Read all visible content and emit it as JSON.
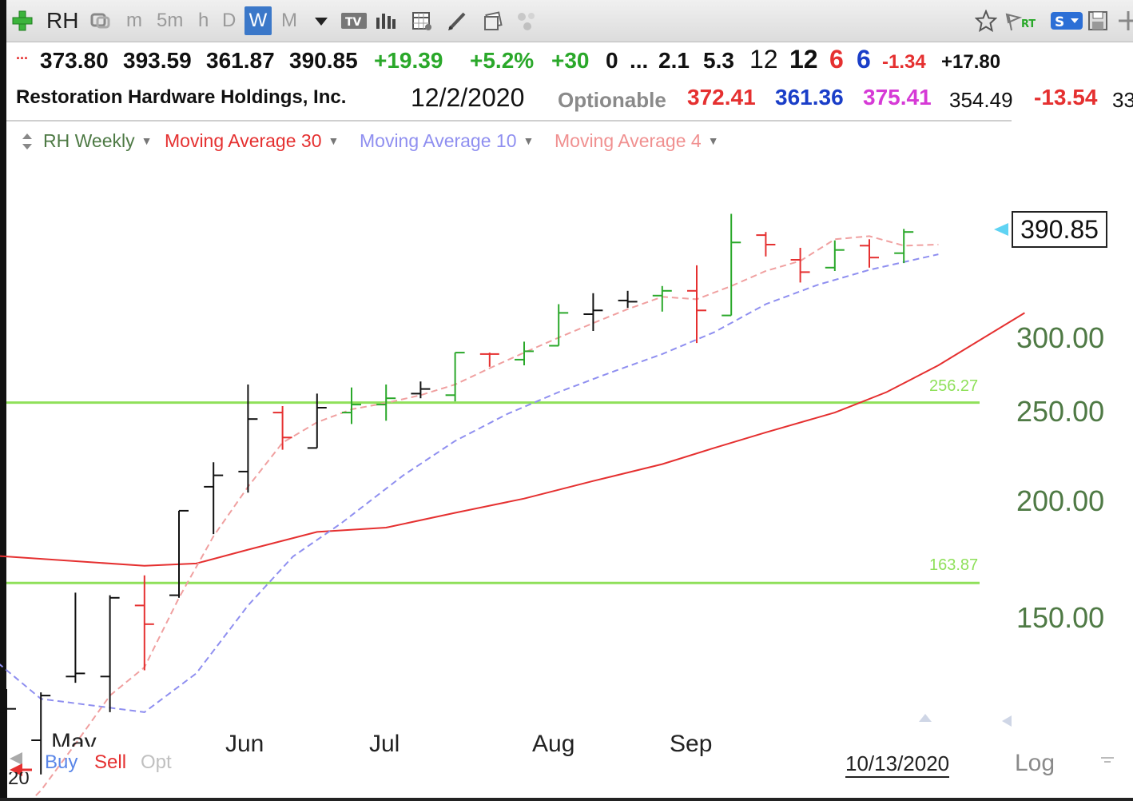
{
  "toolbar": {
    "symbol": "RH",
    "intervals": [
      "m",
      "5m",
      "h",
      "D",
      "W",
      "M"
    ],
    "active_interval": "W"
  },
  "quote": {
    "prefix": "...",
    "open": "373.80",
    "high": "393.59",
    "low": "361.87",
    "close": "390.85",
    "change": "+19.39",
    "change_pct": "+5.2%",
    "v1": "+30",
    "v2": "0",
    "ellipsis": "...",
    "v3": "2.1",
    "v4": "5.3",
    "v5": "12",
    "v6": "12",
    "v7": "6",
    "v8": "6",
    "v9": "-1.34",
    "v10": "+17.80"
  },
  "info": {
    "company": "Restoration Hardware Holdings, Inc.",
    "date": "12/2/2020",
    "optionable": "Optionable",
    "p1": "372.41",
    "p2": "361.36",
    "p3": "375.41",
    "p4": "354.49",
    "p5": "-13.54",
    "p6": "33"
  },
  "legend": {
    "series": "RH Weekly",
    "ma30": "Moving Average 30",
    "ma10": "Moving Average 10",
    "ma4": "Moving Average 4"
  },
  "bottom": {
    "buy": "Buy",
    "sell": "Sell",
    "opt": "Opt",
    "year_fragment": "20",
    "cursor_date": "10/13/2020",
    "scale": "Log"
  },
  "colors": {
    "up": "#2aa82a",
    "down": "#e53030",
    "neutral": "#111111",
    "ma30": "#e53030",
    "ma10": "#8f8ff0",
    "ma4": "#f0a0a0",
    "hline": "#8fe05a",
    "ytick": "#4f7a45"
  },
  "chart_data": {
    "type": "ohlc",
    "scale": "log",
    "last_price": "390.85",
    "y_ticks": [
      "150.00",
      "200.00",
      "250.00",
      "300.00"
    ],
    "x_ticks": [
      "May",
      "Jun",
      "Jul",
      "Aug",
      "Sep"
    ],
    "horizontal_lines": [
      {
        "value": 256.27,
        "label": "256.27"
      },
      {
        "value": 163.87,
        "label": "163.87"
      }
    ],
    "bars": [
      {
        "o": 119,
        "h": 126,
        "l": 93,
        "c": 120,
        "dir": "neutral"
      },
      {
        "o": 111,
        "h": 125,
        "l": 102,
        "c": 124,
        "dir": "neutral"
      },
      {
        "o": 130,
        "h": 160,
        "l": 128,
        "c": 131,
        "dir": "neutral"
      },
      {
        "o": 130,
        "h": 159,
        "l": 119,
        "c": 158,
        "dir": "neutral"
      },
      {
        "o": 155,
        "h": 167,
        "l": 132,
        "c": 148,
        "dir": "down"
      },
      {
        "o": 159,
        "h": 196,
        "l": 158,
        "c": 196,
        "dir": "neutral"
      },
      {
        "o": 208,
        "h": 221,
        "l": 185,
        "c": 214,
        "dir": "neutral"
      },
      {
        "o": 216,
        "h": 268,
        "l": 205,
        "c": 246,
        "dir": "neutral"
      },
      {
        "o": 250,
        "h": 254,
        "l": 228,
        "c": 235,
        "dir": "down"
      },
      {
        "o": 229,
        "h": 262,
        "l": 229,
        "c": 253,
        "dir": "neutral"
      },
      {
        "o": 250,
        "h": 266,
        "l": 243,
        "c": 255,
        "dir": "up"
      },
      {
        "o": 255,
        "h": 268,
        "l": 245,
        "c": 259,
        "dir": "up"
      },
      {
        "o": 262,
        "h": 270,
        "l": 259,
        "c": 265,
        "dir": "neutral"
      },
      {
        "o": 261,
        "h": 290,
        "l": 257,
        "c": 290,
        "dir": "up"
      },
      {
        "o": 289,
        "h": 290,
        "l": 280,
        "c": 289,
        "dir": "down"
      },
      {
        "o": 285,
        "h": 298,
        "l": 281,
        "c": 291,
        "dir": "up"
      },
      {
        "o": 295,
        "h": 327,
        "l": 295,
        "c": 320,
        "dir": "up"
      },
      {
        "o": 319,
        "h": 336,
        "l": 306,
        "c": 322,
        "dir": "neutral"
      },
      {
        "o": 330,
        "h": 338,
        "l": 324,
        "c": 329,
        "dir": "neutral"
      },
      {
        "o": 334,
        "h": 342,
        "l": 321,
        "c": 338,
        "dir": "up"
      },
      {
        "o": 338,
        "h": 360,
        "l": 297,
        "c": 322,
        "dir": "down"
      },
      {
        "o": 318,
        "h": 409,
        "l": 318,
        "c": 381,
        "dir": "up"
      },
      {
        "o": 388,
        "h": 391,
        "l": 368,
        "c": 379,
        "dir": "down"
      },
      {
        "o": 365,
        "h": 376,
        "l": 345,
        "c": 354,
        "dir": "down"
      },
      {
        "o": 358,
        "h": 383,
        "l": 355,
        "c": 374,
        "dir": "up"
      },
      {
        "o": 378,
        "h": 384,
        "l": 358,
        "c": 367,
        "dir": "down"
      },
      {
        "o": 371,
        "h": 394,
        "l": 362,
        "c": 391,
        "dir": "up"
      }
    ],
    "ma30": [
      {
        "i": -2,
        "v": 177
      },
      {
        "i": 4,
        "v": 171
      },
      {
        "i": 5.5,
        "v": 172
      },
      {
        "i": 7,
        "v": 178
      },
      {
        "i": 9,
        "v": 186
      },
      {
        "i": 11,
        "v": 188
      },
      {
        "i": 13,
        "v": 195
      },
      {
        "i": 15,
        "v": 202
      },
      {
        "i": 17,
        "v": 211
      },
      {
        "i": 19,
        "v": 220
      },
      {
        "i": 20.5,
        "v": 229
      },
      {
        "i": 22,
        "v": 238
      },
      {
        "i": 24,
        "v": 250
      },
      {
        "i": 25.5,
        "v": 263
      },
      {
        "i": 27,
        "v": 281
      },
      {
        "i": 29.5,
        "v": 320
      }
    ],
    "ma10": [
      {
        "i": -1.4,
        "v": 146
      },
      {
        "i": 1,
        "v": 123
      },
      {
        "i": 4,
        "v": 119
      },
      {
        "i": 5.5,
        "v": 131
      },
      {
        "i": 7,
        "v": 155
      },
      {
        "i": 8.3,
        "v": 175
      },
      {
        "i": 9.7,
        "v": 190
      },
      {
        "i": 11.5,
        "v": 214
      },
      {
        "i": 13,
        "v": 233
      },
      {
        "i": 14.5,
        "v": 249
      },
      {
        "i": 16,
        "v": 263
      },
      {
        "i": 17.5,
        "v": 276
      },
      {
        "i": 19,
        "v": 289
      },
      {
        "i": 20.5,
        "v": 305
      },
      {
        "i": 22,
        "v": 327
      },
      {
        "i": 23.5,
        "v": 343
      },
      {
        "i": 25,
        "v": 356
      },
      {
        "i": 27,
        "v": 370
      }
    ],
    "ma4": [
      {
        "i": 0,
        "v": 90
      },
      {
        "i": 1,
        "v": 98
      },
      {
        "i": 2,
        "v": 110
      },
      {
        "i": 3,
        "v": 124
      },
      {
        "i": 4,
        "v": 133
      },
      {
        "i": 5,
        "v": 158
      },
      {
        "i": 6,
        "v": 184
      },
      {
        "i": 7,
        "v": 208
      },
      {
        "i": 8,
        "v": 232
      },
      {
        "i": 9,
        "v": 244
      },
      {
        "i": 10,
        "v": 252
      },
      {
        "i": 11,
        "v": 256
      },
      {
        "i": 12,
        "v": 261
      },
      {
        "i": 13,
        "v": 268
      },
      {
        "i": 14,
        "v": 279
      },
      {
        "i": 15,
        "v": 290
      },
      {
        "i": 16,
        "v": 301
      },
      {
        "i": 17,
        "v": 312
      },
      {
        "i": 18,
        "v": 323
      },
      {
        "i": 19,
        "v": 333
      },
      {
        "i": 20,
        "v": 331
      },
      {
        "i": 21,
        "v": 342
      },
      {
        "i": 22,
        "v": 355
      },
      {
        "i": 23,
        "v": 364
      },
      {
        "i": 24,
        "v": 384
      },
      {
        "i": 25,
        "v": 387
      },
      {
        "i": 26,
        "v": 378
      },
      {
        "i": 27,
        "v": 379
      }
    ]
  }
}
